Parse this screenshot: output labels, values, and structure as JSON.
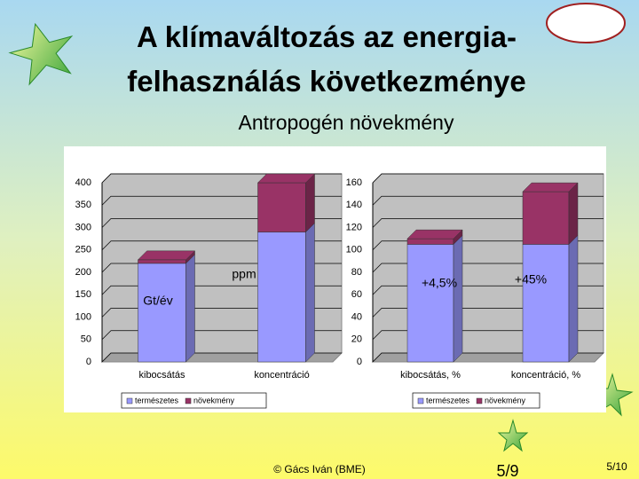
{
  "title": "A klímaváltozás az energia-felhasználás következménye",
  "subtitle": "Antropogén növekmény",
  "footer": "© Gács Iván (BME)",
  "page_number": "5/9",
  "slide_number": "5/10",
  "chart_data": [
    {
      "type": "bar",
      "stacked": true,
      "categories": [
        "kibocsátás",
        "koncentráció"
      ],
      "series": [
        {
          "name": "természetes",
          "color": "#9999ff",
          "values": [
            220,
            290
          ]
        },
        {
          "name": "növekmény",
          "color": "#993366",
          "values": [
            8,
            110
          ]
        }
      ],
      "annotations": [
        "Gt/év",
        "ppm"
      ],
      "ylim": [
        0,
        400
      ],
      "yticks": [
        0,
        50,
        100,
        150,
        200,
        250,
        300,
        350,
        400
      ],
      "grid": true,
      "legend": "bottom"
    },
    {
      "type": "bar",
      "stacked": true,
      "categories": [
        "kibocsátás, %",
        "koncentráció, %"
      ],
      "series": [
        {
          "name": "természetes",
          "color": "#9999ff",
          "values": [
            105,
            105
          ]
        },
        {
          "name": "növekmény",
          "color": "#993366",
          "values": [
            5,
            47
          ]
        }
      ],
      "annotations": [
        "+4,5%",
        "+45%"
      ],
      "ylim": [
        0,
        160
      ],
      "yticks": [
        0,
        20,
        40,
        60,
        80,
        100,
        120,
        140,
        160
      ],
      "grid": true,
      "legend": "bottom"
    }
  ]
}
